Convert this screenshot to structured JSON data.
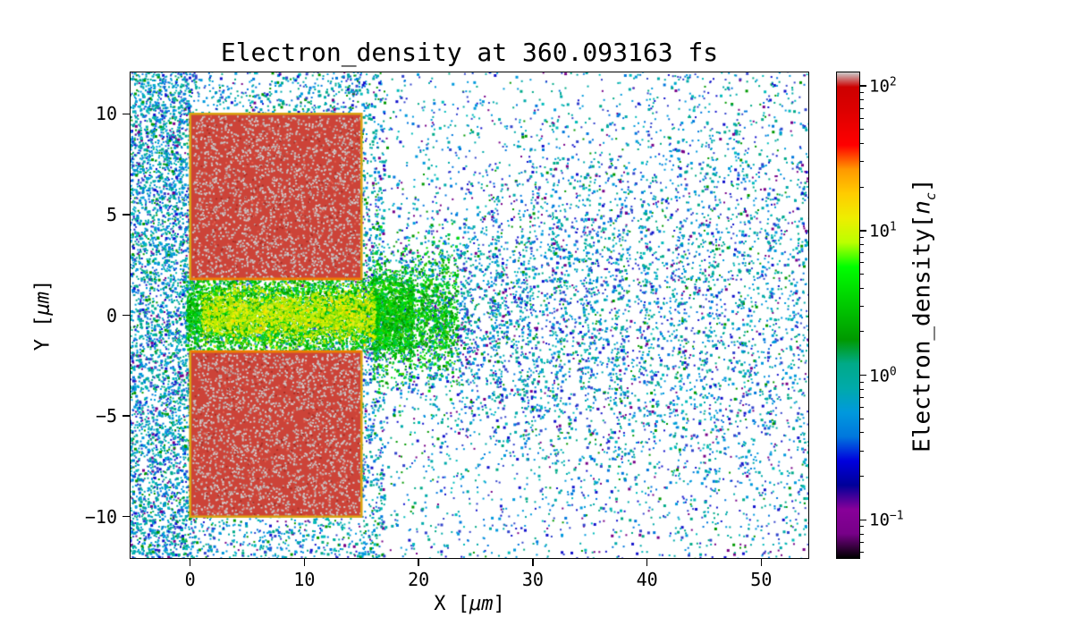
{
  "figure": {
    "background": "#ffffff"
  },
  "chart_data": {
    "type": "heatmap",
    "title": "Electron_density at 360.093163 fs",
    "xlabel": {
      "prefix": "X [",
      "unit": "μm",
      "suffix": "]"
    },
    "ylabel": {
      "prefix": "Y [",
      "unit": "μm",
      "suffix": "]"
    },
    "xlim": [
      -5.3,
      54.2
    ],
    "ylim": [
      -12.1,
      12.1
    ],
    "grid": false,
    "x_ticks": [
      {
        "value": 0,
        "label": "0"
      },
      {
        "value": 10,
        "label": "10"
      },
      {
        "value": 20,
        "label": "20"
      },
      {
        "value": 30,
        "label": "30"
      },
      {
        "value": 40,
        "label": "40"
      },
      {
        "value": 50,
        "label": "50"
      }
    ],
    "y_ticks": [
      {
        "value": 10,
        "label": "10"
      },
      {
        "value": 5,
        "label": "5"
      },
      {
        "value": 0,
        "label": "0"
      },
      {
        "value": -5,
        "label": "−5"
      },
      {
        "value": -10,
        "label": "−10"
      }
    ],
    "colorbar": {
      "label": {
        "prefix": "Electron_density[",
        "symbol": "n",
        "subscript": "c",
        "suffix": "]"
      },
      "scale": "log",
      "log_range": [
        -1.27,
        2.1
      ],
      "ticks": [
        {
          "exponent": 2,
          "base": "10",
          "exp_label": "2"
        },
        {
          "exponent": 1,
          "base": "10",
          "exp_label": "1"
        },
        {
          "exponent": 0,
          "base": "10",
          "exp_label": "0"
        },
        {
          "exponent": -1,
          "base": "10",
          "exp_label": "−1"
        }
      ],
      "colormap": "nipy_spectral",
      "colormap_stops": [
        {
          "pos": 0.0,
          "color": "#000000"
        },
        {
          "pos": 0.05,
          "color": "#770088"
        },
        {
          "pos": 0.1,
          "color": "#880099"
        },
        {
          "pos": 0.15,
          "color": "#000099"
        },
        {
          "pos": 0.2,
          "color": "#0000dd"
        },
        {
          "pos": 0.25,
          "color": "#0077dd"
        },
        {
          "pos": 0.3,
          "color": "#0099dd"
        },
        {
          "pos": 0.35,
          "color": "#00aaaa"
        },
        {
          "pos": 0.4,
          "color": "#00aa88"
        },
        {
          "pos": 0.45,
          "color": "#009900"
        },
        {
          "pos": 0.55,
          "color": "#00dd00"
        },
        {
          "pos": 0.6,
          "color": "#00ff00"
        },
        {
          "pos": 0.65,
          "color": "#bbff00"
        },
        {
          "pos": 0.7,
          "color": "#eeee00"
        },
        {
          "pos": 0.75,
          "color": "#ffcc00"
        },
        {
          "pos": 0.8,
          "color": "#ff9900"
        },
        {
          "pos": 0.85,
          "color": "#ff0000"
        },
        {
          "pos": 0.92,
          "color": "#dd0000"
        },
        {
          "pos": 0.97,
          "color": "#cc0000"
        },
        {
          "pos": 1.0,
          "color": "#cccccc"
        }
      ]
    },
    "features": {
      "targets": [
        {
          "name": "upper-target-slab",
          "x": [
            0,
            15
          ],
          "y": [
            1.8,
            10
          ],
          "fill": "#cc4338",
          "edge": "#d9a412",
          "inner_edge": "#f07d00",
          "approx_density_nc": 60
        },
        {
          "name": "lower-target-slab",
          "x": [
            0,
            15
          ],
          "y": [
            -10,
            -1.8
          ],
          "fill": "#cc4338",
          "edge": "#d9a412",
          "inner_edge": "#f07d00",
          "approx_density_nc": 60
        }
      ],
      "channel": {
        "name": "plasma-channel",
        "x": [
          -0.3,
          19.5
        ],
        "y": [
          -1.9,
          1.9
        ],
        "approx_density_nc": [
          3,
          20
        ]
      },
      "plume": {
        "name": "expanding-plume",
        "x_start": 15,
        "x_end": 54.2,
        "half_width_start": 2.2,
        "half_width_growth": 0.27,
        "approx_density_nc": [
          0.3,
          2
        ]
      },
      "halo": {
        "name": "scattered-electrons",
        "x": [
          -5.3,
          17
        ],
        "approx_density_nc": [
          0.2,
          1.5
        ]
      }
    },
    "render": {
      "seed": 1337,
      "palettes": {
        "ambient": {
          "colors": [
            "#0099dd",
            "#00aaaa",
            "#0077dd",
            "#1111cc",
            "#00aa88",
            "#009900",
            "#770088",
            "#3344cc",
            "#00bbbb"
          ],
          "weights": [
            20,
            18,
            12,
            8,
            14,
            8,
            4,
            8,
            8
          ]
        },
        "plume": {
          "colors": [
            "#0099dd",
            "#00aaaa",
            "#0077dd",
            "#1111cc",
            "#00aa88",
            "#009900",
            "#770088",
            "#3344cc",
            "#00bbbb"
          ],
          "weights": [
            18,
            16,
            12,
            10,
            12,
            6,
            6,
            12,
            8
          ]
        },
        "channel": {
          "colors": [
            "#00bb00",
            "#00dd00",
            "#009900",
            "#00cc44",
            "#44cc00"
          ],
          "weights": [
            25,
            25,
            20,
            15,
            15
          ]
        },
        "core": {
          "colors": [
            "#bbee00",
            "#eeee00",
            "#99dd00",
            "#ddee22",
            "#ffcc00"
          ],
          "weights": [
            30,
            25,
            25,
            15,
            5
          ]
        },
        "target_speckle": {
          "colors": [
            "#c9c1c1",
            "#d4cccc",
            "#bab2b2"
          ],
          "weights": [
            40,
            30,
            30
          ]
        },
        "target_noise": {
          "colors": [
            "#a83028",
            "#e06050"
          ],
          "weights": [
            50,
            50
          ]
        }
      },
      "counts": {
        "ambient": 6500,
        "left_column": 2600,
        "sparse": 3200,
        "plume": 9500,
        "tongue": 1600,
        "channel": 5200,
        "core": 2300,
        "target_speckles": 2100,
        "target_noise": 350
      }
    }
  }
}
